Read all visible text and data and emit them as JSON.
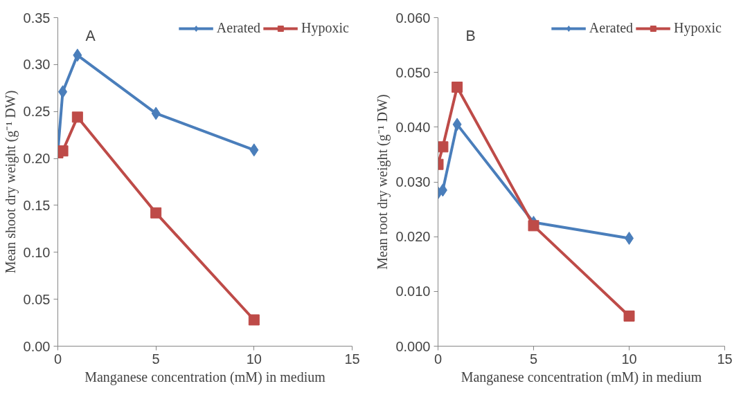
{
  "chart_data": [
    {
      "type": "line",
      "annotations": [
        "A"
      ],
      "xlabel": "Manganese concentration (mM) in medium",
      "ylabel": "Mean shoot dry weight (g⁻¹ DW)",
      "x": [
        0,
        0.25,
        1,
        5,
        10
      ],
      "xlim": [
        0,
        15
      ],
      "xticks": [
        0,
        5,
        10,
        15
      ],
      "ylim": [
        0,
        0.35
      ],
      "yticks": [
        {
          "value": 0,
          "label": "0.00"
        },
        {
          "value": 0.05,
          "label": "0.05"
        },
        {
          "value": 0.1,
          "label": "0.10"
        },
        {
          "value": 0.15,
          "label": "0.15"
        },
        {
          "value": 0.2,
          "label": "0.20"
        },
        {
          "value": 0.25,
          "label": "0.25"
        },
        {
          "value": 0.3,
          "label": "0.30"
        },
        {
          "value": 0.35,
          "label": "0.35"
        }
      ],
      "grid": false,
      "legend": "top right",
      "series": [
        {
          "name": "Aerated",
          "color": "#4a7ebb",
          "marker": "diamond",
          "values": [
            0.207,
            0.271,
            0.31,
            0.248,
            0.209
          ]
        },
        {
          "name": "Hypoxic",
          "color": "#be4b48",
          "marker": "square",
          "values": [
            0.206,
            0.208,
            0.244,
            0.142,
            0.028
          ]
        }
      ]
    },
    {
      "type": "line",
      "annotations": [
        "B"
      ],
      "xlabel": "Manganese concentration (mM) in medium",
      "ylabel": "Mean root dry weight (g⁻¹ DW)",
      "x": [
        0,
        0.25,
        1,
        5,
        10
      ],
      "xlim": [
        0,
        15
      ],
      "xticks": [
        0,
        5,
        10,
        15
      ],
      "ylim": [
        0,
        0.06
      ],
      "yticks": [
        {
          "value": 0,
          "label": "0.000"
        },
        {
          "value": 0.01,
          "label": "0.010"
        },
        {
          "value": 0.02,
          "label": "0.020"
        },
        {
          "value": 0.03,
          "label": "0.030"
        },
        {
          "value": 0.04,
          "label": "0.040"
        },
        {
          "value": 0.05,
          "label": "0.050"
        },
        {
          "value": 0.06,
          "label": "0.060"
        }
      ],
      "grid": false,
      "legend": "top right",
      "series": [
        {
          "name": "Aerated",
          "color": "#4a7ebb",
          "marker": "diamond",
          "values": [
            0.028,
            0.0285,
            0.0405,
            0.0226,
            0.0197
          ]
        },
        {
          "name": "Hypoxic",
          "color": "#be4b48",
          "marker": "square",
          "values": [
            0.0332,
            0.0364,
            0.0473,
            0.022,
            0.0055
          ]
        }
      ]
    }
  ]
}
